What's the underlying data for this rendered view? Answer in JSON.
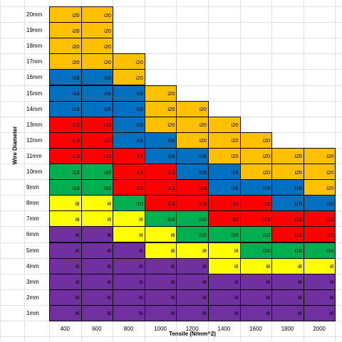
{
  "y_axis_title": "Wire Diameter",
  "x_axis_title": "Tensile (N/mm^2)",
  "row_labels": [
    "20mm",
    "19mm",
    "18mm",
    "17mm",
    "16mm",
    "15mm",
    "14mm",
    "13mm",
    "12mm",
    "11mm",
    "10mm",
    "9mm",
    "8mm",
    "7mm",
    "6mm",
    "5mm",
    "4mm",
    "3mm",
    "2mm",
    "1mm"
  ],
  "col_labels": [
    "400",
    "600",
    "800",
    "1000",
    "1200",
    "1400",
    "1600",
    "1800",
    "2000"
  ],
  "colors": {
    "i20": "#ffc000",
    "i16": "#0070c0",
    "i13": "#ff0000",
    "i10": "#00b050",
    "i8": "#ffff00",
    "i6": "#7030a0"
  },
  "grid": [
    [
      "i20",
      "i20",
      "",
      "",
      "",
      "",
      "",
      "",
      ""
    ],
    [
      "i20",
      "i20",
      "",
      "",
      "",
      "",
      "",
      "",
      ""
    ],
    [
      "i20",
      "i20",
      "",
      "",
      "",
      "",
      "",
      "",
      ""
    ],
    [
      "i20",
      "i20",
      "i20",
      "",
      "",
      "",
      "",
      "",
      ""
    ],
    [
      "i16",
      "i16",
      "i20",
      "",
      "",
      "",
      "",
      "",
      ""
    ],
    [
      "i16",
      "i16",
      "i16",
      "i20",
      "",
      "",
      "",
      "",
      ""
    ],
    [
      "i16",
      "i16",
      "i16",
      "i20",
      "i20",
      "",
      "",
      "",
      ""
    ],
    [
      "i13",
      "i13",
      "i16",
      "i20",
      "i20",
      "i20",
      "",
      "",
      ""
    ],
    [
      "i13",
      "i13",
      "i16",
      "i16",
      "i20",
      "i20",
      "i20",
      "",
      ""
    ],
    [
      "i13",
      "i13",
      "i13",
      "i16",
      "i16",
      "i20",
      "i20",
      "i20",
      "i20"
    ],
    [
      "i10",
      "i10",
      "i13",
      "i13",
      "i16",
      "i16",
      "i20",
      "i20",
      "i20"
    ],
    [
      "i10",
      "i10",
      "i13",
      "i13",
      "i13",
      "i16",
      "i16",
      "i16",
      "i20"
    ],
    [
      "i8",
      "i8",
      "i10",
      "i13",
      "i13",
      "i13",
      "i13",
      "i16",
      "i16"
    ],
    [
      "i8",
      "i8",
      "i8",
      "i10",
      "i10",
      "i13",
      "i13",
      "i13",
      "i13"
    ],
    [
      "i6",
      "i6",
      "i8",
      "i8",
      "i10",
      "i10",
      "i10",
      "i13",
      "i13"
    ],
    [
      "i6",
      "i6",
      "i6",
      "i8",
      "i8",
      "i8",
      "i10",
      "i10",
      "i10"
    ],
    [
      "i6",
      "i6",
      "i6",
      "i6",
      "i6",
      "i8",
      "i8",
      "i8",
      "i8"
    ],
    [
      "i6",
      "i6",
      "i6",
      "i6",
      "i6",
      "i6",
      "i6",
      "i6",
      "i6"
    ],
    [
      "i6",
      "i6",
      "i6",
      "i6",
      "i6",
      "i6",
      "i6",
      "i6",
      "i6"
    ],
    [
      "i6",
      "i6",
      "i6",
      "i6",
      "i6",
      "i6",
      "i6",
      "i6",
      "i6"
    ]
  ]
}
